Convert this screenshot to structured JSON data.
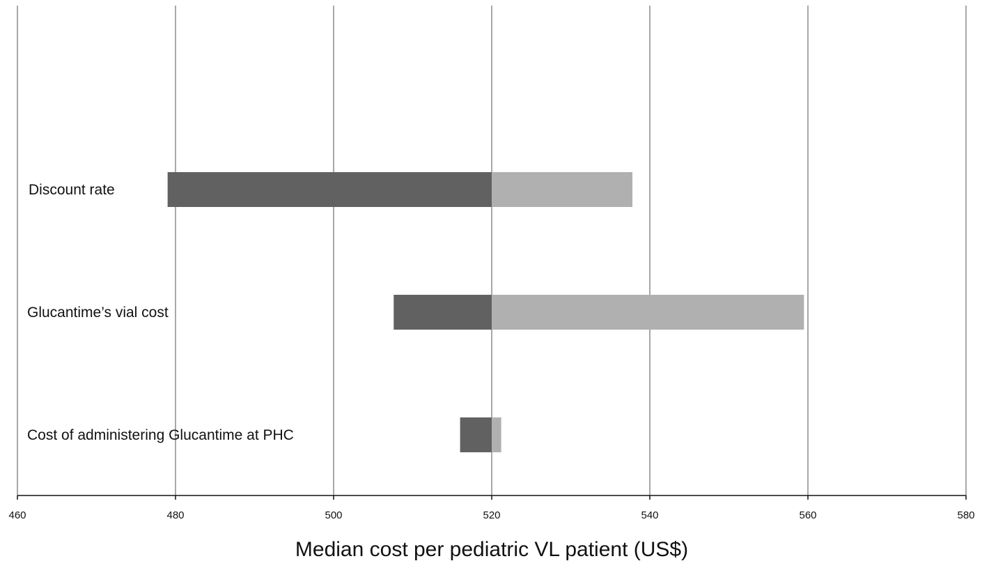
{
  "chart_data": {
    "type": "bar",
    "orientation": "horizontal",
    "subtype": "tornado",
    "title": "",
    "xlabel": "Median cost per pediatric VL patient (US$)",
    "ylabel": "",
    "xlim": [
      460,
      580
    ],
    "xticks": [
      460,
      480,
      500,
      520,
      540,
      560,
      580
    ],
    "base_value": 520,
    "grid": true,
    "legend": "none",
    "categories": [
      "Discount rate",
      "Glucantime’s vial cost",
      "Cost of administering Glucantime at PHC"
    ],
    "series": [
      {
        "role": "low",
        "color": "#616161",
        "values": [
          479,
          507.6,
          516
        ]
      },
      {
        "role": "high",
        "color": "#b0b0b0",
        "values": [
          537.8,
          559.5,
          521.2
        ]
      }
    ]
  }
}
